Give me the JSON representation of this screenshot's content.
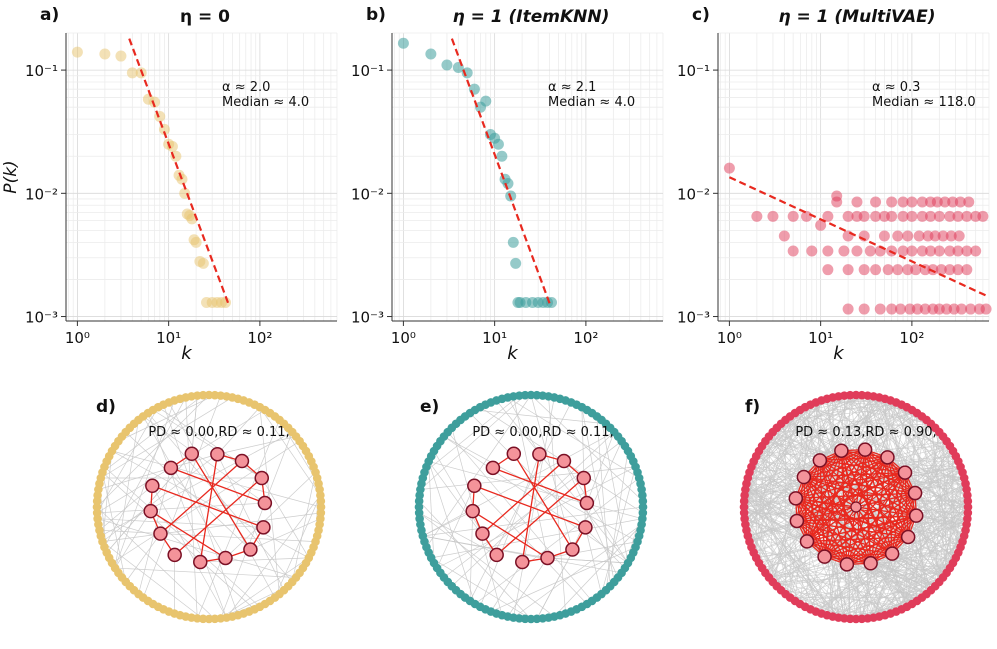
{
  "colors": {
    "panel_a": "#e8c46e",
    "panel_b": "#3e9e9c",
    "panel_c": "#e03c5a",
    "fit_line": "#e8291f",
    "core_fill": "#f4939a",
    "core_stroke": "#7a1025",
    "core_edge": "#e8291f",
    "grey_edge": "#c8c8c8"
  },
  "chart_data": [
    {
      "type": "scatter",
      "panel_label": "a)",
      "title": "η = 0",
      "xlabel": "k",
      "ylabel": "P(k)",
      "xscale": "log",
      "yscale": "log",
      "xlim": [
        0.75,
        700
      ],
      "ylim": [
        0.00092,
        0.2
      ],
      "grid": true,
      "x_ticks": [
        "10⁰",
        "10¹",
        "10²"
      ],
      "y_ticks": [
        "10⁻³",
        "10⁻²",
        "10⁻¹"
      ],
      "annotation": [
        "α ≈ 2.0",
        "Median  ≈ 4.0"
      ],
      "fit_line": {
        "x": [
          3.7,
          45
        ],
        "y": [
          0.18,
          0.00128
        ]
      },
      "series": [
        {
          "name": "η = 0",
          "x": [
            1,
            2,
            3,
            4,
            5,
            6,
            7,
            8,
            9,
            10,
            11,
            12,
            13,
            14,
            15,
            16,
            17,
            18,
            19,
            20,
            22,
            24,
            26,
            30,
            34,
            38,
            42
          ],
          "y": [
            0.14,
            0.135,
            0.13,
            0.095,
            0.095,
            0.058,
            0.055,
            0.042,
            0.033,
            0.025,
            0.024,
            0.02,
            0.014,
            0.013,
            0.01,
            0.0068,
            0.0066,
            0.0062,
            0.0042,
            0.004,
            0.0028,
            0.0027,
            0.0013,
            0.0013,
            0.0013,
            0.0013,
            0.0013
          ]
        }
      ]
    },
    {
      "type": "scatter",
      "panel_label": "b)",
      "title": "η = 1 (ItemKNN)",
      "xlabel": "k",
      "ylabel": "",
      "xscale": "log",
      "yscale": "log",
      "xlim": [
        0.75,
        700
      ],
      "ylim": [
        0.00092,
        0.2
      ],
      "grid": true,
      "x_ticks": [
        "10⁰",
        "10¹",
        "10²"
      ],
      "y_ticks": [
        "10⁻³",
        "10⁻²",
        "10⁻¹"
      ],
      "annotation": [
        "α ≈ 2.1",
        "Median  ≈ 4.0"
      ],
      "fit_line": {
        "x": [
          3.4,
          40
        ],
        "y": [
          0.18,
          0.00128
        ]
      },
      "series": [
        {
          "name": "η = 1 (ItemKNN)",
          "x": [
            1,
            2,
            3,
            4,
            5,
            6,
            7,
            8,
            9,
            10,
            11,
            12,
            13,
            14,
            15,
            16,
            17,
            18,
            19,
            22,
            26,
            30,
            34,
            38,
            42
          ],
          "y": [
            0.165,
            0.135,
            0.11,
            0.105,
            0.095,
            0.07,
            0.05,
            0.056,
            0.03,
            0.028,
            0.025,
            0.02,
            0.013,
            0.012,
            0.0095,
            0.004,
            0.0027,
            0.0013,
            0.0013,
            0.0013,
            0.0013,
            0.0013,
            0.0013,
            0.0013,
            0.0013
          ]
        }
      ]
    },
    {
      "type": "scatter",
      "panel_label": "c)",
      "title": "η = 1 (MultiVAE)",
      "xlabel": "k",
      "ylabel": "",
      "xscale": "log",
      "yscale": "log",
      "xlim": [
        0.75,
        700
      ],
      "ylim": [
        0.00092,
        0.2
      ],
      "grid": true,
      "x_ticks": [
        "10⁰",
        "10¹",
        "10²"
      ],
      "y_ticks": [
        "10⁻³",
        "10⁻²",
        "10⁻¹"
      ],
      "annotation": [
        "α ≈ 0.3",
        "Median  ≈ 118.0"
      ],
      "fit_line": {
        "x": [
          1,
          650
        ],
        "y": [
          0.0135,
          0.00148
        ]
      },
      "series": [
        {
          "name": "η = 1 (MultiVAE)",
          "x": [
            1,
            2,
            3,
            4,
            5,
            7,
            10,
            12,
            15,
            20,
            25,
            30,
            40,
            50,
            60,
            80,
            100,
            130,
            160,
            200,
            260,
            320,
            400,
            500,
            600,
            5,
            8,
            12,
            18,
            25,
            35,
            45,
            60,
            80,
            100,
            130,
            160,
            200,
            260,
            320,
            400,
            500,
            12,
            20,
            30,
            40,
            55,
            70,
            90,
            110,
            140,
            170,
            210,
            260,
            320,
            400,
            20,
            30,
            50,
            70,
            90,
            120,
            150,
            180,
            220,
            270,
            330,
            15,
            25,
            40,
            60,
            80,
            100,
            130,
            160,
            190,
            230,
            280,
            340,
            420,
            20,
            30,
            45,
            60,
            75,
            95,
            115,
            140,
            170,
            200,
            240,
            290,
            350,
            440,
            550,
            650
          ],
          "y": [
            0.016,
            0.0065,
            0.0065,
            0.0045,
            0.0065,
            0.0065,
            0.0055,
            0.0065,
            0.0095,
            0.0065,
            0.0065,
            0.0065,
            0.0065,
            0.0065,
            0.0065,
            0.0065,
            0.0065,
            0.0065,
            0.0065,
            0.0065,
            0.0065,
            0.0065,
            0.0065,
            0.0065,
            0.0065,
            0.0034,
            0.0034,
            0.0034,
            0.0034,
            0.0034,
            0.0034,
            0.0034,
            0.0034,
            0.0034,
            0.0034,
            0.0034,
            0.0034,
            0.0034,
            0.0034,
            0.0034,
            0.0034,
            0.0034,
            0.0024,
            0.0024,
            0.0024,
            0.0024,
            0.0024,
            0.0024,
            0.0024,
            0.0024,
            0.0024,
            0.0024,
            0.0024,
            0.0024,
            0.0024,
            0.0024,
            0.0045,
            0.0045,
            0.0045,
            0.0045,
            0.0045,
            0.0045,
            0.0045,
            0.0045,
            0.0045,
            0.0045,
            0.0045,
            0.0085,
            0.0085,
            0.0085,
            0.0085,
            0.0085,
            0.0085,
            0.0085,
            0.0085,
            0.0085,
            0.0085,
            0.0085,
            0.0085,
            0.0085,
            0.00115,
            0.00115,
            0.00115,
            0.00115,
            0.00115,
            0.00115,
            0.00115,
            0.00115,
            0.00115,
            0.00115,
            0.00115,
            0.00115,
            0.00115,
            0.00115,
            0.00115,
            0.00115
          ]
        }
      ]
    }
  ],
  "networks": [
    {
      "panel_label": "d)",
      "annotation": "PD ≈ 0.00,RD ≈ 0.11,",
      "ring_node_count": 120,
      "core_node_count": 14,
      "dense_core": false
    },
    {
      "panel_label": "e)",
      "annotation": "PD ≈ 0.00,RD ≈ 0.11,",
      "ring_node_count": 120,
      "core_node_count": 14,
      "dense_core": false
    },
    {
      "panel_label": "f)",
      "annotation": "PD ≈ 0.13,RD ≈ 0.90,",
      "ring_node_count": 120,
      "core_node_count": 16,
      "dense_core": true
    }
  ]
}
